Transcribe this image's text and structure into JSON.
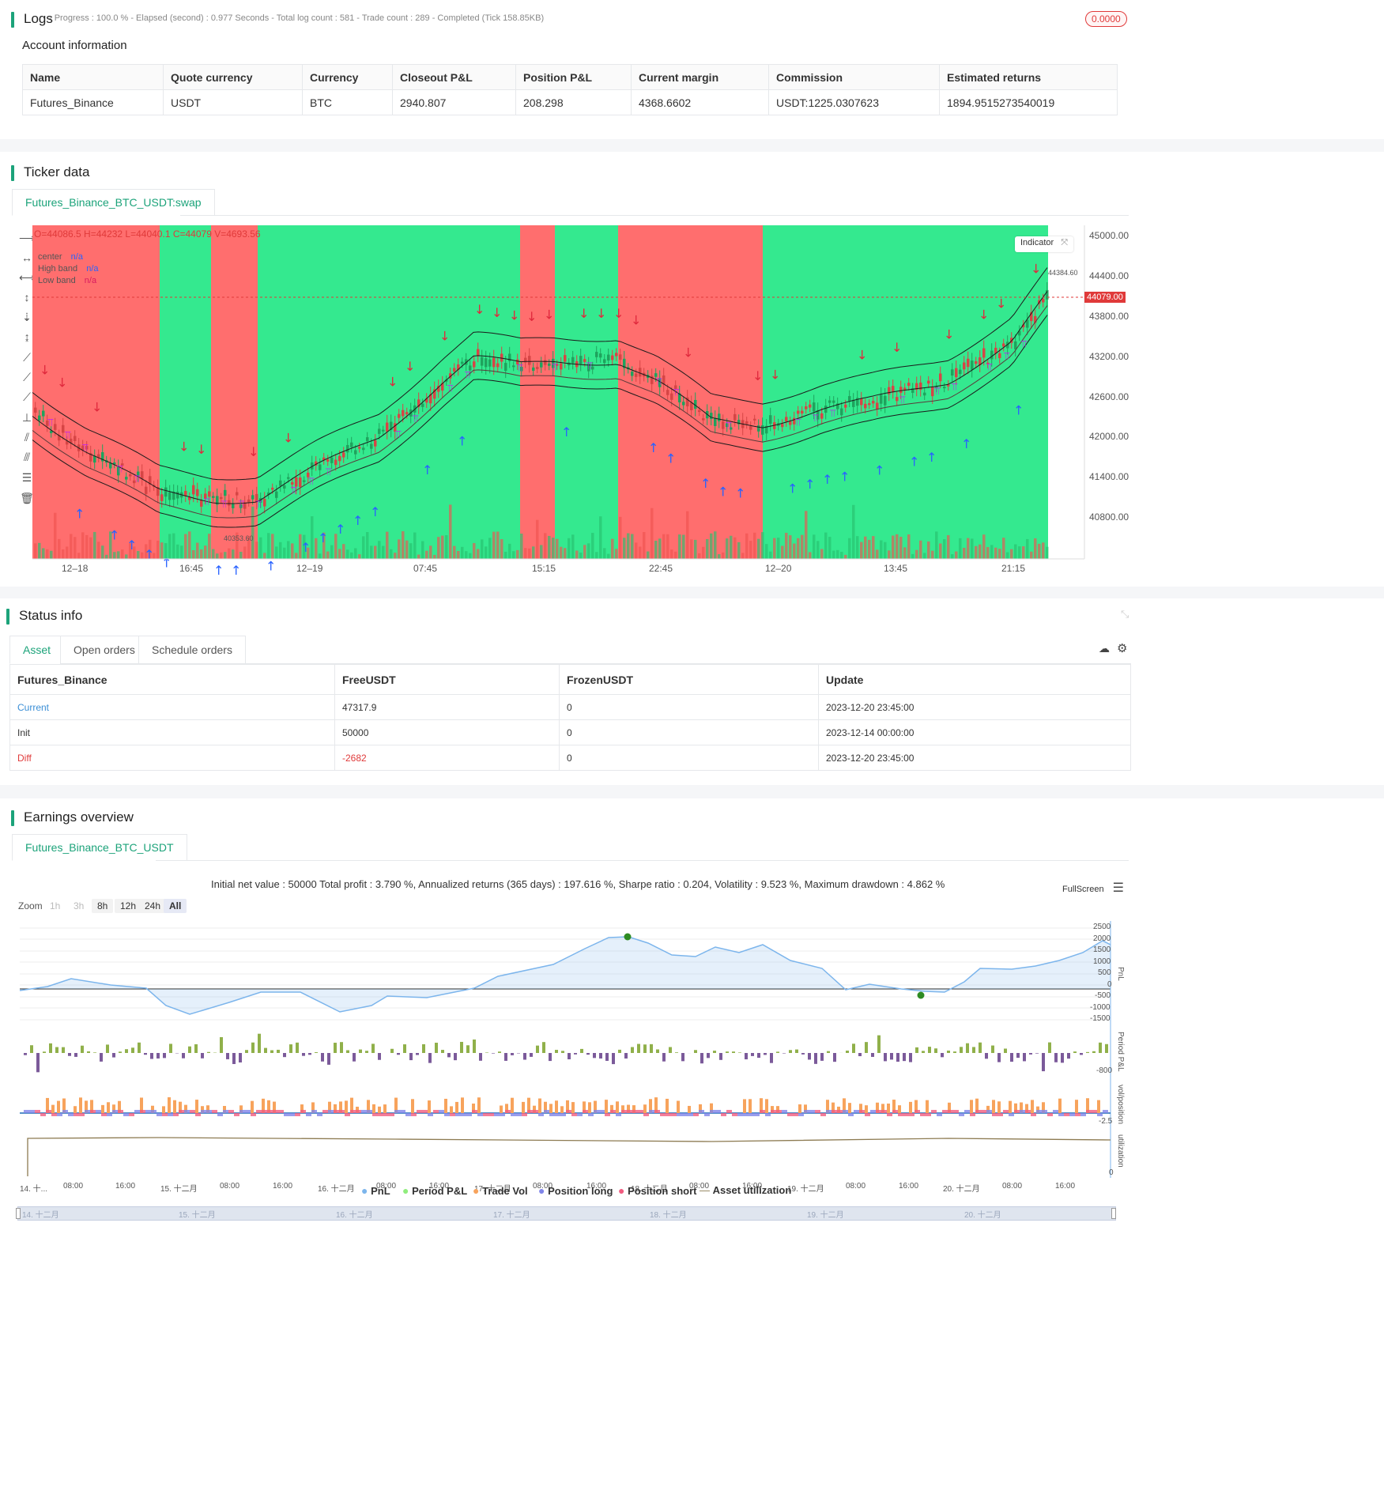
{
  "logs": {
    "title": "Logs",
    "progress": "- Progress : 100.0 % - Elapsed (second) : 0.977  Seconds - Total log count : 581 - Trade count : 289 - Completed (Tick 158.85KB)",
    "badge": "0.0000"
  },
  "account": {
    "title": "Account information",
    "headers": [
      "Name",
      "Quote currency",
      "Currency",
      "Closeout P&L",
      "Position P&L",
      "Current margin",
      "Commission",
      "Estimated returns"
    ],
    "row": [
      "Futures_Binance",
      "USDT",
      "BTC",
      "2940.807",
      "208.298",
      "4368.6602",
      "USDT:1225.0307623",
      "1894.9515273540019"
    ]
  },
  "ticker": {
    "title": "Ticker data",
    "tab": "Futures_Binance_BTC_USDT:swap",
    "ohlc": "O=44086.5 H=44232 L=44040.1 C=44079 V=4693.56",
    "indicator_button": "Indicator",
    "legend": [
      {
        "name": "center",
        "value": "n/a",
        "color": "#2962ff"
      },
      {
        "name": "High band",
        "value": "n/a",
        "color": "#2962ff"
      },
      {
        "name": "Low band",
        "value": "n/a",
        "color": "#d81b60"
      }
    ],
    "y_ticks": [
      "45000.00",
      "44400.00",
      "43800.00",
      "43200.00",
      "42600.00",
      "42000.00",
      "41400.00",
      "40800.00"
    ],
    "x_ticks": [
      "12–18",
      "16:45",
      "12–19",
      "07:45",
      "15:15",
      "22:45",
      "12–20",
      "13:45",
      "21:15"
    ],
    "current_price": "44079.00",
    "high_marker": "44384.60",
    "low_marker": "40353.60",
    "colors": {
      "bull_bg": "#34e98f",
      "bear_bg": "#ff6e6e"
    }
  },
  "status": {
    "title": "Status info",
    "tabs": [
      "Asset",
      "Open orders",
      "Schedule orders"
    ],
    "headers": [
      "Futures_Binance",
      "FreeUSDT",
      "FrozenUSDT",
      "Update"
    ],
    "rows": [
      [
        "Current",
        "47317.9",
        "0",
        "2023-12-20 23:45:00"
      ],
      [
        "Init",
        "50000",
        "0",
        "2023-12-14 00:00:00"
      ],
      [
        "Diff",
        "-2682",
        "0",
        "2023-12-20 23:45:00"
      ]
    ]
  },
  "earnings": {
    "title": "Earnings overview",
    "tab": "Futures_Binance_BTC_USDT",
    "summary": "Initial net value : 50000 Total profit : 3.790 %, Annualized returns (365 days) : 197.616 %, Sharpe ratio : 0.204, Volatility : 9.523 %, Maximum drawdown : 4.862 %",
    "fullscreen": "FullScreen",
    "zoom_label": "Zoom",
    "zoom_options": [
      "1h",
      "3h",
      "8h",
      "12h",
      "24h",
      "All"
    ],
    "pnl_ticks": [
      "2500",
      "2000",
      "1500",
      "1000",
      "500",
      "0",
      "-500",
      "-1000",
      "-1500"
    ],
    "pnl_axis": "PnL",
    "period_axis": "Period P&L",
    "period_tick": "-800",
    "vol_axis": "vol/position",
    "vol_tick": "-2.5",
    "util_axis": "utilization",
    "util_tick": "0",
    "x_ticks": [
      "14. 十...",
      "08:00",
      "16:00",
      "15. 十二月",
      "08:00",
      "16:00",
      "16. 十二月",
      "08:00",
      "16:00",
      "17. 十二月",
      "08:00",
      "16:00",
      "18. 十二月",
      "08:00",
      "16:00",
      "19. 十二月",
      "08:00",
      "16:00",
      "20. 十二月",
      "08:00",
      "16:00"
    ],
    "nav_ticks": [
      "14. 十二月",
      "15. 十二月",
      "16. 十二月",
      "17. 十二月",
      "18. 十二月",
      "19. 十二月",
      "20. 十二月"
    ],
    "legend": [
      {
        "name": "PnL",
        "color": "#7cb5ec"
      },
      {
        "name": "Period P&L",
        "color": "#90ed7d"
      },
      {
        "name": "Trade Vol",
        "color": "#f7a35c"
      },
      {
        "name": "Position long",
        "color": "#8085e9"
      },
      {
        "name": "Position short",
        "color": "#f15c80"
      },
      {
        "name": "Asset utilization",
        "color": "#8d7b52"
      }
    ]
  }
}
